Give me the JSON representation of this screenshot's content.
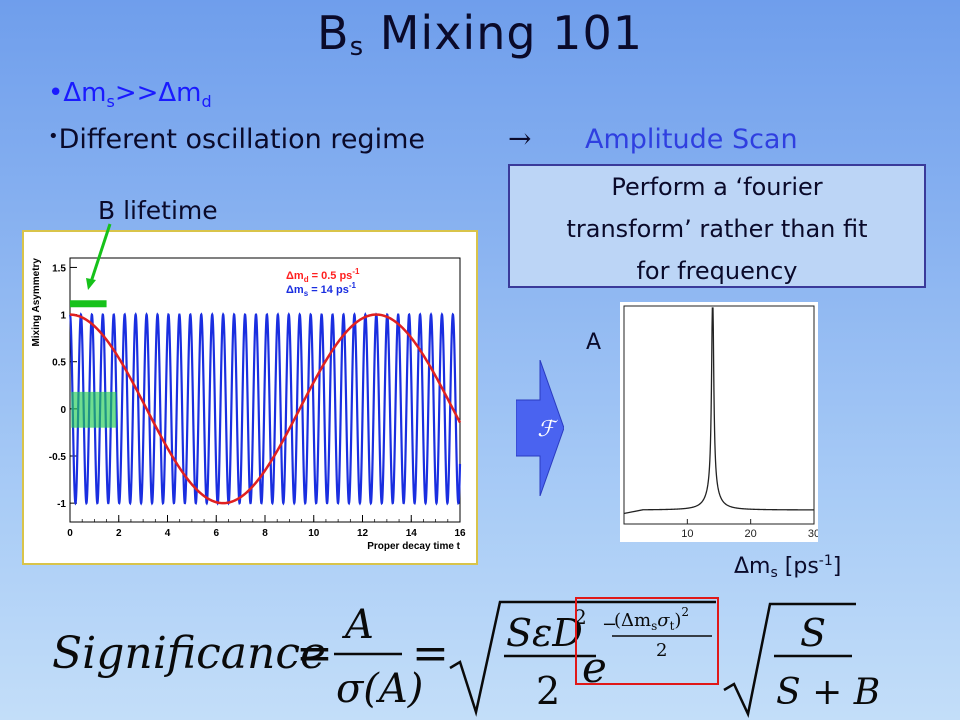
{
  "slide": {
    "title_main": "B",
    "title_sub": "s",
    "title_rest": " Mixing 101",
    "bullet1": {
      "pre": "Δm",
      "sub1": "s",
      "mid": ">>Δm",
      "sub2": "d"
    },
    "bullet2_text": "Different oscillation regime",
    "arrow_symbol": "→",
    "amplitude_scan": "Amplitude Scan",
    "box_text": [
      "Perform a ‘fourier",
      "transform’ rather than fit",
      "for frequency"
    ],
    "b_lifetime": "B lifetime",
    "a_label": "A",
    "dms_label": {
      "pre": "Δm",
      "sub": "s",
      "mid": " [ps",
      "sup": "-1",
      "post": "]"
    },
    "fourier_symbol": "ℱ"
  },
  "formula": {
    "lhs": "Significance",
    "num1": "A",
    "den1": "σ(A)",
    "num2": "SεD",
    "num2_sup": "2",
    "den2": "2",
    "exp_base": "e",
    "exp_num": "(Δm",
    "exp_num_sub1": "s",
    "exp_num_mid": "σ",
    "exp_num_sub2": "t",
    "exp_num_post": ")",
    "exp_num_sup": "2",
    "exp_minus": "−",
    "exp_den": "2",
    "num3": "S",
    "den3": "S + B"
  },
  "chart_data": [
    {
      "type": "line",
      "xlabel": "Proper decay time t",
      "ylabel": "Mixing Asymmetry",
      "xlim": [
        0,
        16
      ],
      "ylim": [
        -1.2,
        1.6
      ],
      "x_ticks": [
        "0",
        "2",
        "4",
        "6",
        "8",
        "10",
        "12",
        "14",
        "16"
      ],
      "y_ticks": [
        "-1",
        "-0.5",
        "0",
        "0.5",
        "1",
        "1.5"
      ],
      "legend": [
        {
          "pre": "Δm",
          "sub": "d",
          "value": " = 0.5 ps",
          "sup": "-1",
          "color": "#ff2020"
        },
        {
          "pre": "Δm",
          "sub": "s",
          "value": " = 14 ps",
          "sup": "-1",
          "color": "#1a2ee0"
        }
      ],
      "series": [
        {
          "function": "cos",
          "frequency": 0.5,
          "color": "#e02020"
        },
        {
          "function": "cos",
          "frequency": 14,
          "color": "#1a2ee0"
        }
      ]
    },
    {
      "type": "line",
      "xlim": [
        0,
        30
      ],
      "x_ticks": [
        "10",
        "20",
        "30"
      ],
      "peak_x": 14,
      "series": [
        {
          "shape": "peak",
          "color": "#222222"
        }
      ]
    }
  ]
}
